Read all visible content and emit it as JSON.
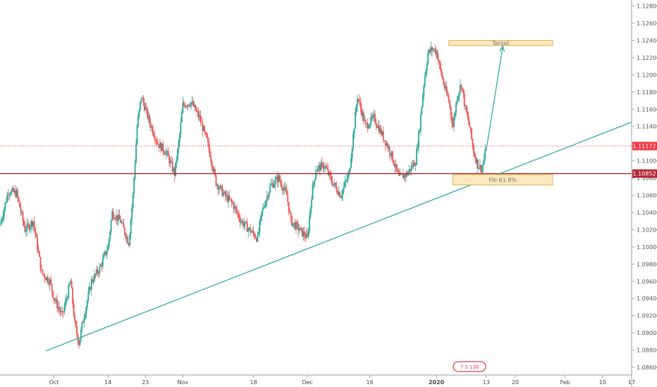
{
  "chart_data": {
    "type": "candlestick",
    "y_axis": {
      "min": 1.0851,
      "max": 1.1287,
      "ticks": [
        "1.12800",
        "1.12600",
        "1.12400",
        "1.12200",
        "1.12000",
        "1.11800",
        "1.11600",
        "1.11400",
        "1.11000",
        "1.10800",
        "1.10600",
        "1.10400",
        "1.10200",
        "1.10000",
        "1.09800",
        "1.09600",
        "1.09400",
        "1.09200",
        "1.09000",
        "1.08800",
        "1.08600"
      ]
    },
    "x_axis": {
      "ticks": [
        {
          "label": "Oct",
          "day": 1,
          "bold": false
        },
        {
          "label": "14",
          "day": 14,
          "bold": false
        },
        {
          "label": "23",
          "day": 23,
          "bold": false
        },
        {
          "label": "Nov",
          "day": 32,
          "bold": false
        },
        {
          "label": "18",
          "day": 49,
          "bold": false
        },
        {
          "label": "Dec",
          "day": 62,
          "bold": false
        },
        {
          "label": "16",
          "day": 77,
          "bold": false
        },
        {
          "label": "2020",
          "day": 93,
          "bold": true
        },
        {
          "label": "13",
          "day": 105,
          "bold": false
        },
        {
          "label": "20",
          "day": 112,
          "bold": false
        },
        {
          "label": "Feb",
          "day": 124,
          "bold": false
        },
        {
          "label": "10",
          "day": 133,
          "bold": false
        },
        {
          "label": "17",
          "day": 140,
          "bold": false
        }
      ],
      "day_range": [
        -12,
        140
      ]
    },
    "price_path": [
      [
        -12,
        1.1025
      ],
      [
        -10,
        1.1065
      ],
      [
        -8,
        1.1062
      ],
      [
        -6,
        1.102
      ],
      [
        -4,
        1.103
      ],
      [
        -2,
        1.097
      ],
      [
        0,
        1.096
      ],
      [
        1,
        1.094
      ],
      [
        3,
        1.092
      ],
      [
        5,
        1.096
      ],
      [
        6,
        1.091
      ],
      [
        7,
        1.0888
      ],
      [
        8,
        1.0915
      ],
      [
        10,
        1.096
      ],
      [
        12,
        1.0975
      ],
      [
        14,
        1.1
      ],
      [
        15,
        1.104
      ],
      [
        17,
        1.103
      ],
      [
        19,
        1.1005
      ],
      [
        20,
        1.106
      ],
      [
        21,
        1.114
      ],
      [
        22,
        1.1175
      ],
      [
        24,
        1.1145
      ],
      [
        26,
        1.112
      ],
      [
        28,
        1.111
      ],
      [
        30,
        1.1085
      ],
      [
        31,
        1.112
      ],
      [
        32,
        1.1165
      ],
      [
        34,
        1.1168
      ],
      [
        36,
        1.115
      ],
      [
        38,
        1.112
      ],
      [
        40,
        1.1075
      ],
      [
        42,
        1.106
      ],
      [
        44,
        1.105
      ],
      [
        46,
        1.103
      ],
      [
        48,
        1.102
      ],
      [
        50,
        1.101
      ],
      [
        51,
        1.104
      ],
      [
        53,
        1.107
      ],
      [
        55,
        1.108
      ],
      [
        57,
        1.106
      ],
      [
        58,
        1.103
      ],
      [
        60,
        1.102
      ],
      [
        62,
        1.101
      ],
      [
        63,
        1.106
      ],
      [
        64,
        1.109
      ],
      [
        66,
        1.1095
      ],
      [
        68,
        1.1075
      ],
      [
        70,
        1.106
      ],
      [
        72,
        1.1085
      ],
      [
        73,
        1.113
      ],
      [
        74,
        1.1175
      ],
      [
        76,
        1.114
      ],
      [
        78,
        1.115
      ],
      [
        80,
        1.113
      ],
      [
        82,
        1.111
      ],
      [
        84,
        1.108
      ],
      [
        86,
        1.1085
      ],
      [
        88,
        1.11
      ],
      [
        89,
        1.114
      ],
      [
        90,
        1.119
      ],
      [
        91,
        1.1225
      ],
      [
        92,
        1.123
      ],
      [
        93,
        1.1228
      ],
      [
        94,
        1.1205
      ],
      [
        95,
        1.1185
      ],
      [
        96,
        1.117
      ],
      [
        97,
        1.114
      ],
      [
        98,
        1.1175
      ],
      [
        99,
        1.119
      ],
      [
        100,
        1.116
      ],
      [
        101,
        1.114
      ],
      [
        102,
        1.111
      ],
      [
        103,
        1.1095
      ],
      [
        104,
        1.109
      ],
      [
        105,
        1.1115
      ]
    ],
    "trendline": {
      "start": [
        -1,
        1.0879
      ],
      "end": [
        140,
        1.1145
      ]
    },
    "horizontal_lines": [
      {
        "price": 1.11172,
        "label": "1.11172",
        "color": "#f23645",
        "style": "dotted"
      },
      {
        "price": 1.10852,
        "label": "1.10852",
        "color": "#b22833",
        "style": "solid"
      }
    ],
    "projection_arrow": {
      "start": [
        105,
        1.1112
      ],
      "end": [
        109,
        1.1233
      ]
    },
    "zones": [
      {
        "day_start": 96,
        "day_end": 121,
        "price_top": 1.124,
        "price_bottom": 1.1234,
        "label": "Target"
      },
      {
        "day_start": 97,
        "day_end": 121,
        "price_top": 1.1084,
        "price_bottom": 1.1072,
        "label": "Fib 61.8%"
      }
    ],
    "colors": {
      "up": "#26a69a",
      "down": "#ef5350",
      "trend": "#26a69a",
      "zone_fill": "#fbe9bd",
      "zone_stroke": "#d9b35c",
      "axis_label_red": "#f23645",
      "axis_label_dark": "#b22833"
    },
    "watermark": "7 5 136"
  }
}
